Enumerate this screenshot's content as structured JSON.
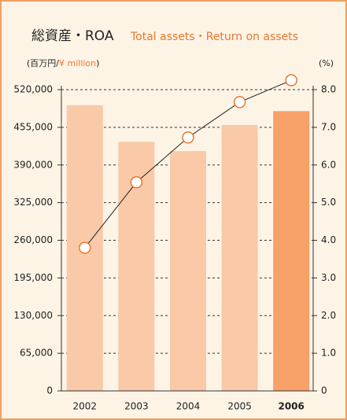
{
  "chart_data": {
    "type": "bar_line",
    "title": "総資産・ROA",
    "subtitle": "Total assets・Return on assets",
    "ylabel": [
      "(百万円/",
      "¥ million",
      ")"
    ],
    "y2label": "(%)",
    "categories": [
      "2002",
      "2003",
      "2004",
      "2005",
      "2006"
    ],
    "highlight_index": 4,
    "series": [
      {
        "name": "Total assets",
        "type": "bar",
        "colors": [
          "#f9c9a8",
          "#f9c9a8",
          "#f9c9a8",
          "#f9c9a8",
          "#f7a068"
        ],
        "values": [
          493000,
          430000,
          414000,
          459000,
          483000
        ]
      },
      {
        "name": "Return on assets",
        "type": "line",
        "axis": "y2",
        "color": "#e8772e",
        "values": [
          3.8,
          5.54,
          6.73,
          7.67,
          8.25
        ]
      }
    ],
    "ylim": [
      0,
      520000
    ],
    "yticks": [
      0,
      {
        "value": 65000,
        "label": "65,000"
      },
      {
        "value": 130000,
        "label": "130,000"
      },
      {
        "value": 195000,
        "label": "195,000"
      },
      {
        "value": 260000,
        "label": "260,000"
      },
      {
        "value": 325000,
        "label": "325,000"
      },
      {
        "value": 390000,
        "label": "390,000"
      },
      {
        "value": 455000,
        "label": "455,000"
      },
      {
        "value": 520000,
        "label": "520,000"
      }
    ],
    "y2lim": [
      0,
      8
    ],
    "y2ticks": [
      0,
      {
        "value": 1,
        "label": "1.0"
      },
      {
        "value": 2,
        "label": "2.0"
      },
      {
        "value": 3,
        "label": "3.0"
      },
      {
        "value": 4,
        "label": "4.0"
      },
      {
        "value": 5,
        "label": "5.0"
      },
      {
        "value": 6,
        "label": "6.0"
      },
      {
        "value": 7,
        "label": "7.0"
      },
      {
        "value": 8,
        "label": "8.0"
      }
    ],
    "grid": true
  }
}
